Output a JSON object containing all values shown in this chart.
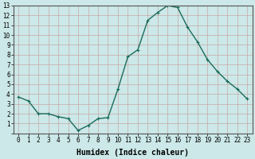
{
  "x": [
    0,
    1,
    2,
    3,
    4,
    5,
    6,
    7,
    8,
    9,
    10,
    11,
    12,
    13,
    14,
    15,
    16,
    17,
    18,
    19,
    20,
    21,
    22,
    23
  ],
  "y": [
    3.7,
    3.3,
    2.0,
    2.0,
    1.7,
    1.5,
    0.3,
    0.8,
    1.5,
    1.6,
    4.5,
    7.8,
    8.5,
    11.5,
    12.3,
    13.0,
    12.8,
    10.8,
    9.3,
    7.5,
    6.3,
    5.3,
    4.5,
    3.5
  ],
  "line_color": "#1a6b5a",
  "marker": "+",
  "marker_size": 3,
  "linewidth": 1.0,
  "xlabel": "Humidex (Indice chaleur)",
  "xlim": [
    -0.5,
    23.5
  ],
  "ylim": [
    0,
    13
  ],
  "xticks": [
    0,
    1,
    2,
    3,
    4,
    5,
    6,
    7,
    8,
    9,
    10,
    11,
    12,
    13,
    14,
    15,
    16,
    17,
    18,
    19,
    20,
    21,
    22,
    23
  ],
  "yticks": [
    0,
    1,
    2,
    3,
    4,
    5,
    6,
    7,
    8,
    9,
    10,
    11,
    12,
    13
  ],
  "bg_color": "#cce8e8",
  "grid_color": "#c8a8a8",
  "label_fontsize": 7,
  "tick_fontsize": 5.5
}
